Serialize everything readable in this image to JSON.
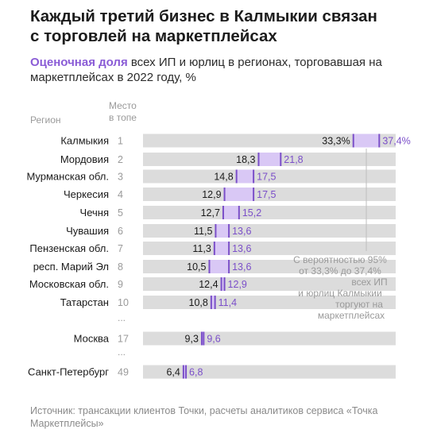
{
  "title_line1": "Каждый третий бизнес в Калмыкии связан",
  "title_line2": "с торговлей на маркетплейсах",
  "subtitle_highlight": "Оценочная доля",
  "subtitle_rest": " всех ИП и юрлиц в регионах, торговавшая на маркетплейсах в 2022 году, %",
  "header_region": "Регион",
  "header_rank_line1": "Место",
  "header_rank_line2": "в топе",
  "source": "Источник: трансакции клиентов Точки, расчеты аналитиков сервиса «Точка Маркетплейсы»",
  "colors": {
    "bar_bg": "#dcdcdc",
    "range": "#d9c8f5",
    "accent": "#8a5cd6",
    "marker": "#7b4fc9"
  },
  "chart_data": {
    "type": "bar",
    "orientation": "horizontal",
    "xlim": [
      0,
      40
    ],
    "rows": [
      {
        "region": "Калмыкия",
        "rank": "1",
        "low": 33.3,
        "high": 37.4,
        "low_label": "33,3%",
        "high_label": "37,4%"
      },
      {
        "region": "Мордовия",
        "rank": "2",
        "low": 18.3,
        "high": 21.8,
        "low_label": "18,3",
        "high_label": "21,8"
      },
      {
        "region": "Мурманская обл.",
        "rank": "3",
        "low": 14.8,
        "high": 17.5,
        "low_label": "14,8",
        "high_label": "17,5"
      },
      {
        "region": "Черкесия",
        "rank": "4",
        "low": 12.9,
        "high": 17.5,
        "low_label": "12,9",
        "high_label": "17,5"
      },
      {
        "region": "Чечня",
        "rank": "5",
        "low": 12.7,
        "high": 15.2,
        "low_label": "12,7",
        "high_label": "15,2"
      },
      {
        "region": "Чувашия",
        "rank": "6",
        "low": 11.5,
        "high": 13.6,
        "low_label": "11,5",
        "high_label": "13,6"
      },
      {
        "region": "Пензенская обл.",
        "rank": "7",
        "low": 11.3,
        "high": 13.6,
        "low_label": "11,3",
        "high_label": "13,6"
      },
      {
        "region": "респ. Марий Эл",
        "rank": "8",
        "low": 10.5,
        "high": 13.6,
        "low_label": "10,5",
        "high_label": "13,6"
      },
      {
        "region": "Московская обл.",
        "rank": "9",
        "low": 12.4,
        "high": 12.9,
        "low_label": "12,4",
        "high_label": "12,9"
      },
      {
        "region": "Татарстан",
        "rank": "10",
        "low": 10.8,
        "high": 11.4,
        "low_label": "10,8",
        "high_label": "11,4"
      },
      {
        "region": "Москва",
        "rank": "17",
        "low": 9.3,
        "high": 9.6,
        "low_label": "9,3",
        "high_label": "9,6"
      },
      {
        "region": "Санкт-Петербург",
        "rank": "49",
        "low": 6.4,
        "high": 6.8,
        "low_label": "6,4",
        "high_label": "6,8"
      }
    ],
    "ellipsis": "...",
    "annotation_lines": [
      "С вероятностью 95%",
      "от 33,3% до 37,4%",
      "всех ИП",
      "и юрлиц  Калмыкии",
      "торгуют на",
      "маркетплейсах"
    ]
  }
}
